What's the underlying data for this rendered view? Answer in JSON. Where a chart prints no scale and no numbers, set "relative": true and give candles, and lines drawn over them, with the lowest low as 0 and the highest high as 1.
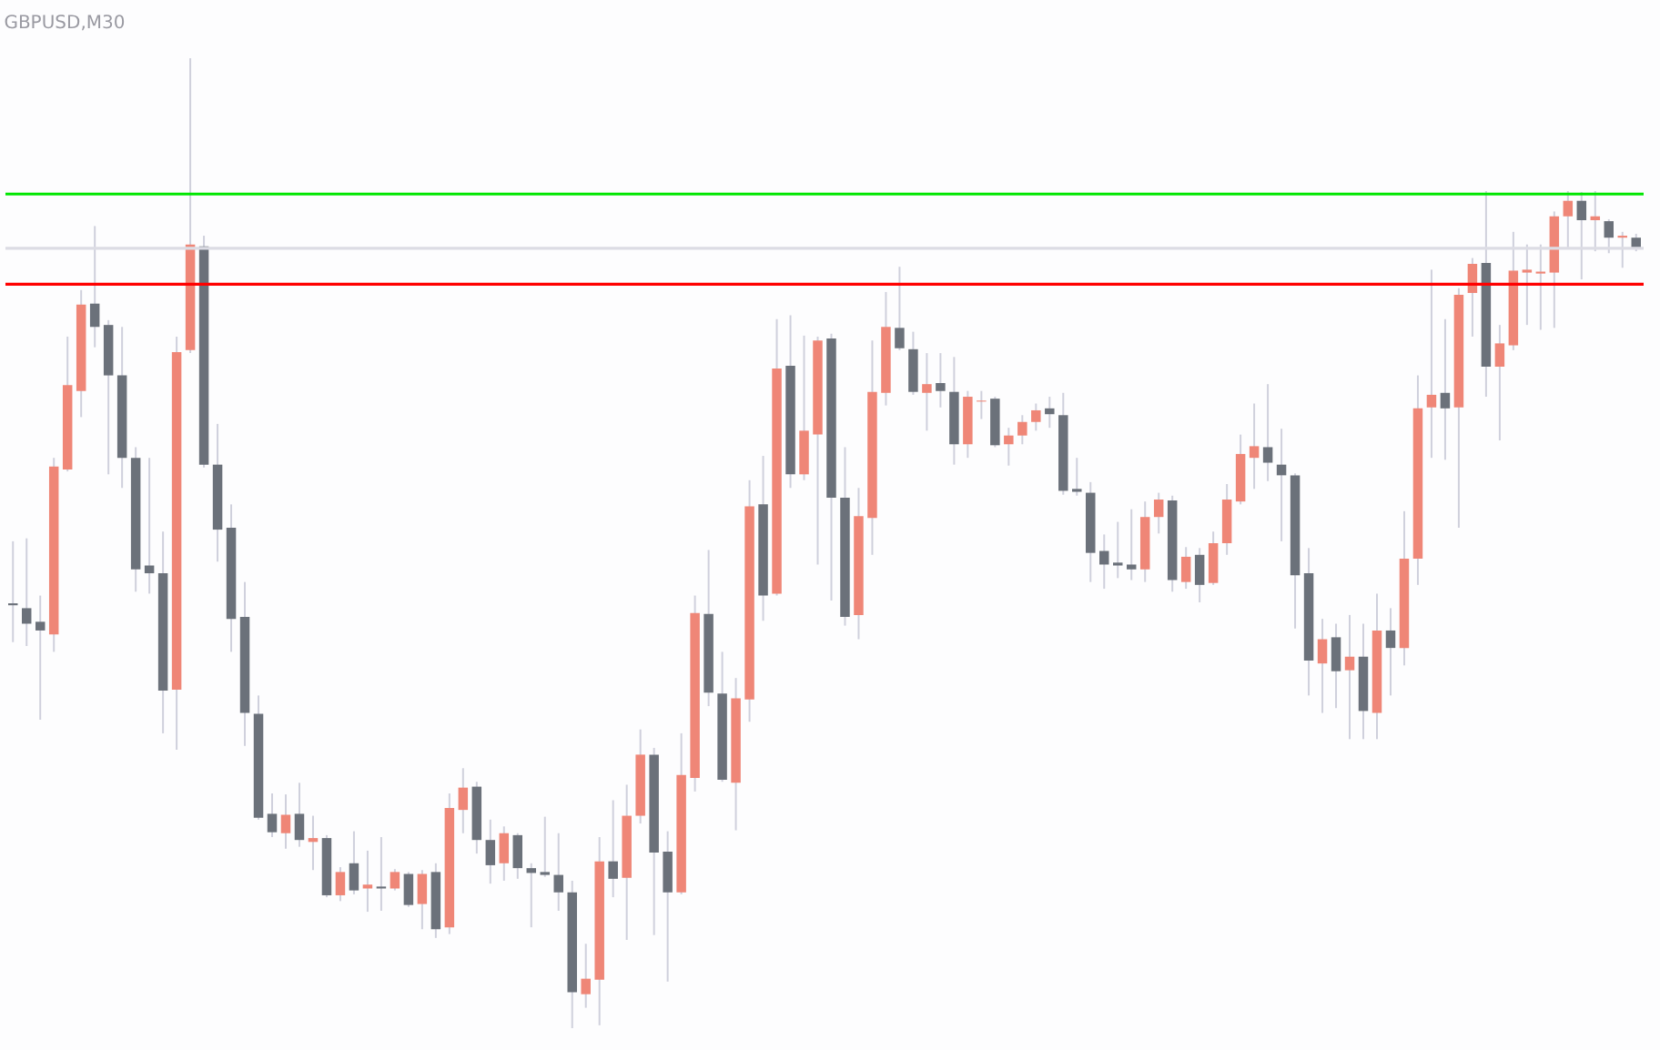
{
  "chart_data": {
    "type": "candlestick",
    "title": "GBPUSD,M30",
    "relative": true,
    "categories": [
      null,
      null,
      null,
      null,
      null,
      null,
      null,
      null,
      null,
      null,
      null,
      null,
      null,
      null,
      null,
      null,
      null,
      null,
      null,
      null,
      null,
      null,
      null,
      null,
      null,
      null,
      null,
      null,
      null,
      null,
      null,
      null,
      null,
      null,
      null,
      null,
      null,
      null,
      null,
      null,
      null,
      null,
      null,
      null,
      null,
      null,
      null,
      null,
      null,
      null,
      null,
      null,
      null,
      null,
      null,
      null,
      null,
      null,
      null,
      null,
      null,
      null,
      null,
      null,
      null,
      null,
      null,
      null,
      null,
      null,
      null,
      null,
      null,
      null,
      null,
      null,
      null,
      null,
      null,
      null,
      null,
      null,
      null,
      null,
      null,
      null,
      null,
      null,
      null,
      null,
      null,
      null,
      null,
      null,
      null,
      null,
      null,
      null,
      null,
      null,
      null,
      null,
      null,
      null,
      null,
      null,
      null,
      null,
      null,
      null,
      null,
      null,
      null,
      null,
      null,
      null,
      null,
      null,
      null,
      null
    ],
    "ohlc": [
      [
        0.438,
        0.502,
        0.398,
        0.436
      ],
      [
        0.433,
        0.505,
        0.394,
        0.417
      ],
      [
        0.419,
        0.446,
        0.318,
        0.41
      ],
      [
        0.406,
        0.588,
        0.388,
        0.579
      ],
      [
        0.576,
        0.713,
        0.574,
        0.663
      ],
      [
        0.657,
        0.761,
        0.63,
        0.746
      ],
      [
        0.747,
        0.827,
        0.702,
        0.723
      ],
      [
        0.725,
        0.73,
        0.571,
        0.673
      ],
      [
        0.673,
        0.723,
        0.557,
        0.588
      ],
      [
        0.588,
        0.599,
        0.45,
        0.473
      ],
      [
        0.477,
        0.588,
        0.448,
        0.469
      ],
      [
        0.469,
        0.512,
        0.304,
        0.348
      ],
      [
        0.349,
        0.713,
        0.287,
        0.697
      ],
      [
        0.699,
        1,
        0.696,
        0.808
      ],
      [
        0.806,
        0.817,
        0.578,
        0.581
      ],
      [
        0.581,
        0.623,
        0.481,
        0.514
      ],
      [
        0.516,
        0.54,
        0.388,
        0.422
      ],
      [
        0.424,
        0.46,
        0.291,
        0.325
      ],
      [
        0.324,
        0.343,
        0.215,
        0.217
      ],
      [
        0.221,
        0.242,
        0.197,
        0.202
      ],
      [
        0.201,
        0.241,
        0.185,
        0.22
      ],
      [
        0.221,
        0.253,
        0.187,
        0.194
      ],
      [
        0.192,
        0.219,
        0.163,
        0.196
      ],
      [
        0.196,
        0.199,
        0.135,
        0.137
      ],
      [
        0.137,
        0.166,
        0.131,
        0.161
      ],
      [
        0.17,
        0.203,
        0.138,
        0.142
      ],
      [
        0.144,
        0.183,
        0.12,
        0.148
      ],
      [
        0.146,
        0.197,
        0.121,
        0.144
      ],
      [
        0.144,
        0.164,
        0.142,
        0.161
      ],
      [
        0.159,
        0.161,
        0.125,
        0.127
      ],
      [
        0.128,
        0.163,
        0.102,
        0.159
      ],
      [
        0.161,
        0.17,
        0.093,
        0.102
      ],
      [
        0.104,
        0.242,
        0.097,
        0.227
      ],
      [
        0.225,
        0.268,
        0.201,
        0.248
      ],
      [
        0.249,
        0.254,
        0.18,
        0.194
      ],
      [
        0.194,
        0.215,
        0.149,
        0.168
      ],
      [
        0.17,
        0.208,
        0.152,
        0.201
      ],
      [
        0.199,
        0.201,
        0.154,
        0.165
      ],
      [
        0.165,
        0.17,
        0.104,
        0.16
      ],
      [
        0.161,
        0.218,
        0.156,
        0.158
      ],
      [
        0.158,
        0.201,
        0.121,
        0.14
      ],
      [
        0.14,
        0.152,
        0,
        0.037
      ],
      [
        0.035,
        0.087,
        0.021,
        0.051
      ],
      [
        0.05,
        0.197,
        0.003,
        0.172
      ],
      [
        0.172,
        0.235,
        0.135,
        0.154
      ],
      [
        0.155,
        0.251,
        0.091,
        0.219
      ],
      [
        0.219,
        0.308,
        0.211,
        0.282
      ],
      [
        0.282,
        0.289,
        0.096,
        0.181
      ],
      [
        0.182,
        0.203,
        0.048,
        0.14
      ],
      [
        0.14,
        0.304,
        0.138,
        0.261
      ],
      [
        0.258,
        0.446,
        0.244,
        0.428
      ],
      [
        0.427,
        0.493,
        0.332,
        0.346
      ],
      [
        0.345,
        0.388,
        0.254,
        0.256
      ],
      [
        0.253,
        0.361,
        0.204,
        0.34
      ],
      [
        0.339,
        0.565,
        0.316,
        0.538
      ],
      [
        0.54,
        0.59,
        0.42,
        0.446
      ],
      [
        0.448,
        0.731,
        0.446,
        0.68
      ],
      [
        0.683,
        0.735,
        0.557,
        0.571
      ],
      [
        0.571,
        0.714,
        0.565,
        0.616
      ],
      [
        0.612,
        0.713,
        0.478,
        0.709
      ],
      [
        0.711,
        0.716,
        0.441,
        0.547
      ],
      [
        0.547,
        0.599,
        0.415,
        0.424
      ],
      [
        0.426,
        0.557,
        0.401,
        0.528
      ],
      [
        0.526,
        0.709,
        0.488,
        0.656
      ],
      [
        0.655,
        0.759,
        0.642,
        0.723
      ],
      [
        0.722,
        0.785,
        0.699,
        0.701
      ],
      [
        0.7,
        0.718,
        0.653,
        0.656
      ],
      [
        0.655,
        0.696,
        0.616,
        0.664
      ],
      [
        0.665,
        0.696,
        0.64,
        0.657
      ],
      [
        0.656,
        0.692,
        0.581,
        0.602
      ],
      [
        0.602,
        0.657,
        0.588,
        0.651
      ],
      [
        0.646,
        0.657,
        0.628,
        0.647
      ],
      [
        0.649,
        0.651,
        0.599,
        0.601
      ],
      [
        0.602,
        0.619,
        0.58,
        0.611
      ],
      [
        0.611,
        0.632,
        0.602,
        0.625
      ],
      [
        0.625,
        0.644,
        0.616,
        0.637
      ],
      [
        0.639,
        0.651,
        0.619,
        0.633
      ],
      [
        0.632,
        0.655,
        0.55,
        0.554
      ],
      [
        0.556,
        0.588,
        0.549,
        0.553
      ],
      [
        0.552,
        0.563,
        0.46,
        0.49
      ],
      [
        0.492,
        0.509,
        0.453,
        0.478
      ],
      [
        0.48,
        0.522,
        0.464,
        0.477
      ],
      [
        0.478,
        0.535,
        0.462,
        0.473
      ],
      [
        0.473,
        0.543,
        0.46,
        0.527
      ],
      [
        0.527,
        0.552,
        0.51,
        0.545
      ],
      [
        0.544,
        0.549,
        0.45,
        0.462
      ],
      [
        0.46,
        0.496,
        0.453,
        0.486
      ],
      [
        0.488,
        0.495,
        0.439,
        0.457
      ],
      [
        0.459,
        0.512,
        0.457,
        0.5
      ],
      [
        0.5,
        0.561,
        0.488,
        0.545
      ],
      [
        0.543,
        0.612,
        0.54,
        0.592
      ],
      [
        0.588,
        0.644,
        0.556,
        0.6
      ],
      [
        0.599,
        0.664,
        0.564,
        0.583
      ],
      [
        0.581,
        0.618,
        0.502,
        0.57
      ],
      [
        0.57,
        0.572,
        0.412,
        0.467
      ],
      [
        0.469,
        0.495,
        0.343,
        0.379
      ],
      [
        0.376,
        0.422,
        0.325,
        0.401
      ],
      [
        0.403,
        0.417,
        0.33,
        0.368
      ],
      [
        0.369,
        0.426,
        0.298,
        0.383
      ],
      [
        0.383,
        0.417,
        0.298,
        0.327
      ],
      [
        0.325,
        0.448,
        0.298,
        0.41
      ],
      [
        0.41,
        0.433,
        0.343,
        0.392
      ],
      [
        0.392,
        0.533,
        0.374,
        0.484
      ],
      [
        0.484,
        0.673,
        0.457,
        0.639
      ],
      [
        0.64,
        0.782,
        0.588,
        0.653
      ],
      [
        0.655,
        0.731,
        0.586,
        0.639
      ],
      [
        0.64,
        0.763,
        0.516,
        0.756
      ],
      [
        0.758,
        0.794,
        0.713,
        0.788
      ],
      [
        0.789,
        0.863,
        0.651,
        0.682
      ],
      [
        0.682,
        0.725,
        0.606,
        0.706
      ],
      [
        0.704,
        0.821,
        0.699,
        0.781
      ],
      [
        0.779,
        0.808,
        0.725,
        0.782
      ],
      [
        0.778,
        0.808,
        0.72,
        0.78
      ],
      [
        0.779,
        0.842,
        0.722,
        0.837
      ],
      [
        0.837,
        0.863,
        0.803,
        0.853
      ],
      [
        0.853,
        0.862,
        0.772,
        0.833
      ],
      [
        0.833,
        0.863,
        0.801,
        0.837
      ],
      [
        0.832,
        0.834,
        0.799,
        0.815
      ],
      [
        0.815,
        0.821,
        0.784,
        0.817
      ],
      [
        0.815,
        0.819,
        0.801,
        0.803
      ]
    ],
    "colors": [
      "#6b717a",
      "#6b717a",
      "#6b717a",
      "#ef8677",
      "#ef8677",
      "#ef8677",
      "#6b717a",
      "#6b717a",
      "#6b717a",
      "#6b717a",
      "#6b717a",
      "#6b717a",
      "#ef8677",
      "#ef8677",
      "#6b717a",
      "#6b717a",
      "#6b717a",
      "#6b717a",
      "#6b717a",
      "#6b717a",
      "#ef8677",
      "#6b717a",
      "#ef8677",
      "#6b717a",
      "#ef8677",
      "#6b717a",
      "#ef8677",
      "#6b717a",
      "#ef8677",
      "#6b717a",
      "#ef8677",
      "#6b717a",
      "#ef8677",
      "#ef8677",
      "#6b717a",
      "#6b717a",
      "#ef8677",
      "#6b717a",
      "#6b717a",
      "#6b717a",
      "#6b717a",
      "#6b717a",
      "#ef8677",
      "#ef8677",
      "#6b717a",
      "#ef8677",
      "#ef8677",
      "#6b717a",
      "#6b717a",
      "#ef8677",
      "#ef8677",
      "#6b717a",
      "#6b717a",
      "#ef8677",
      "#ef8677",
      "#6b717a",
      "#ef8677",
      "#6b717a",
      "#ef8677",
      "#ef8677",
      "#6b717a",
      "#6b717a",
      "#ef8677",
      "#ef8677",
      "#ef8677",
      "#6b717a",
      "#6b717a",
      "#ef8677",
      "#6b717a",
      "#6b717a",
      "#ef8677",
      "#ef8677",
      "#6b717a",
      "#ef8677",
      "#ef8677",
      "#ef8677",
      "#6b717a",
      "#6b717a",
      "#6b717a",
      "#6b717a",
      "#6b717a",
      "#6b717a",
      "#6b717a",
      "#ef8677",
      "#ef8677",
      "#6b717a",
      "#ef8677",
      "#6b717a",
      "#ef8677",
      "#ef8677",
      "#ef8677",
      "#ef8677",
      "#6b717a",
      "#6b717a",
      "#6b717a",
      "#6b717a",
      "#ef8677",
      "#6b717a",
      "#ef8677",
      "#6b717a",
      "#ef8677",
      "#6b717a",
      "#ef8677",
      "#ef8677",
      "#ef8677",
      "#6b717a",
      "#ef8677",
      "#ef8677",
      "#6b717a",
      "#ef8677",
      "#ef8677",
      "#ef8677",
      "#ef8677",
      "#ef8677",
      "#ef8677",
      "#6b717a",
      "#ef8677",
      "#6b717a",
      "#ef8677",
      "#6b717a"
    ],
    "ref_lines": [
      {
        "axis": "y",
        "value": 0.86,
        "color": "#00e600"
      },
      {
        "axis": "y",
        "value": 0.804,
        "color": "#dcdce4"
      },
      {
        "axis": "y",
        "value": 0.767,
        "color": "#ff0000"
      }
    ]
  }
}
